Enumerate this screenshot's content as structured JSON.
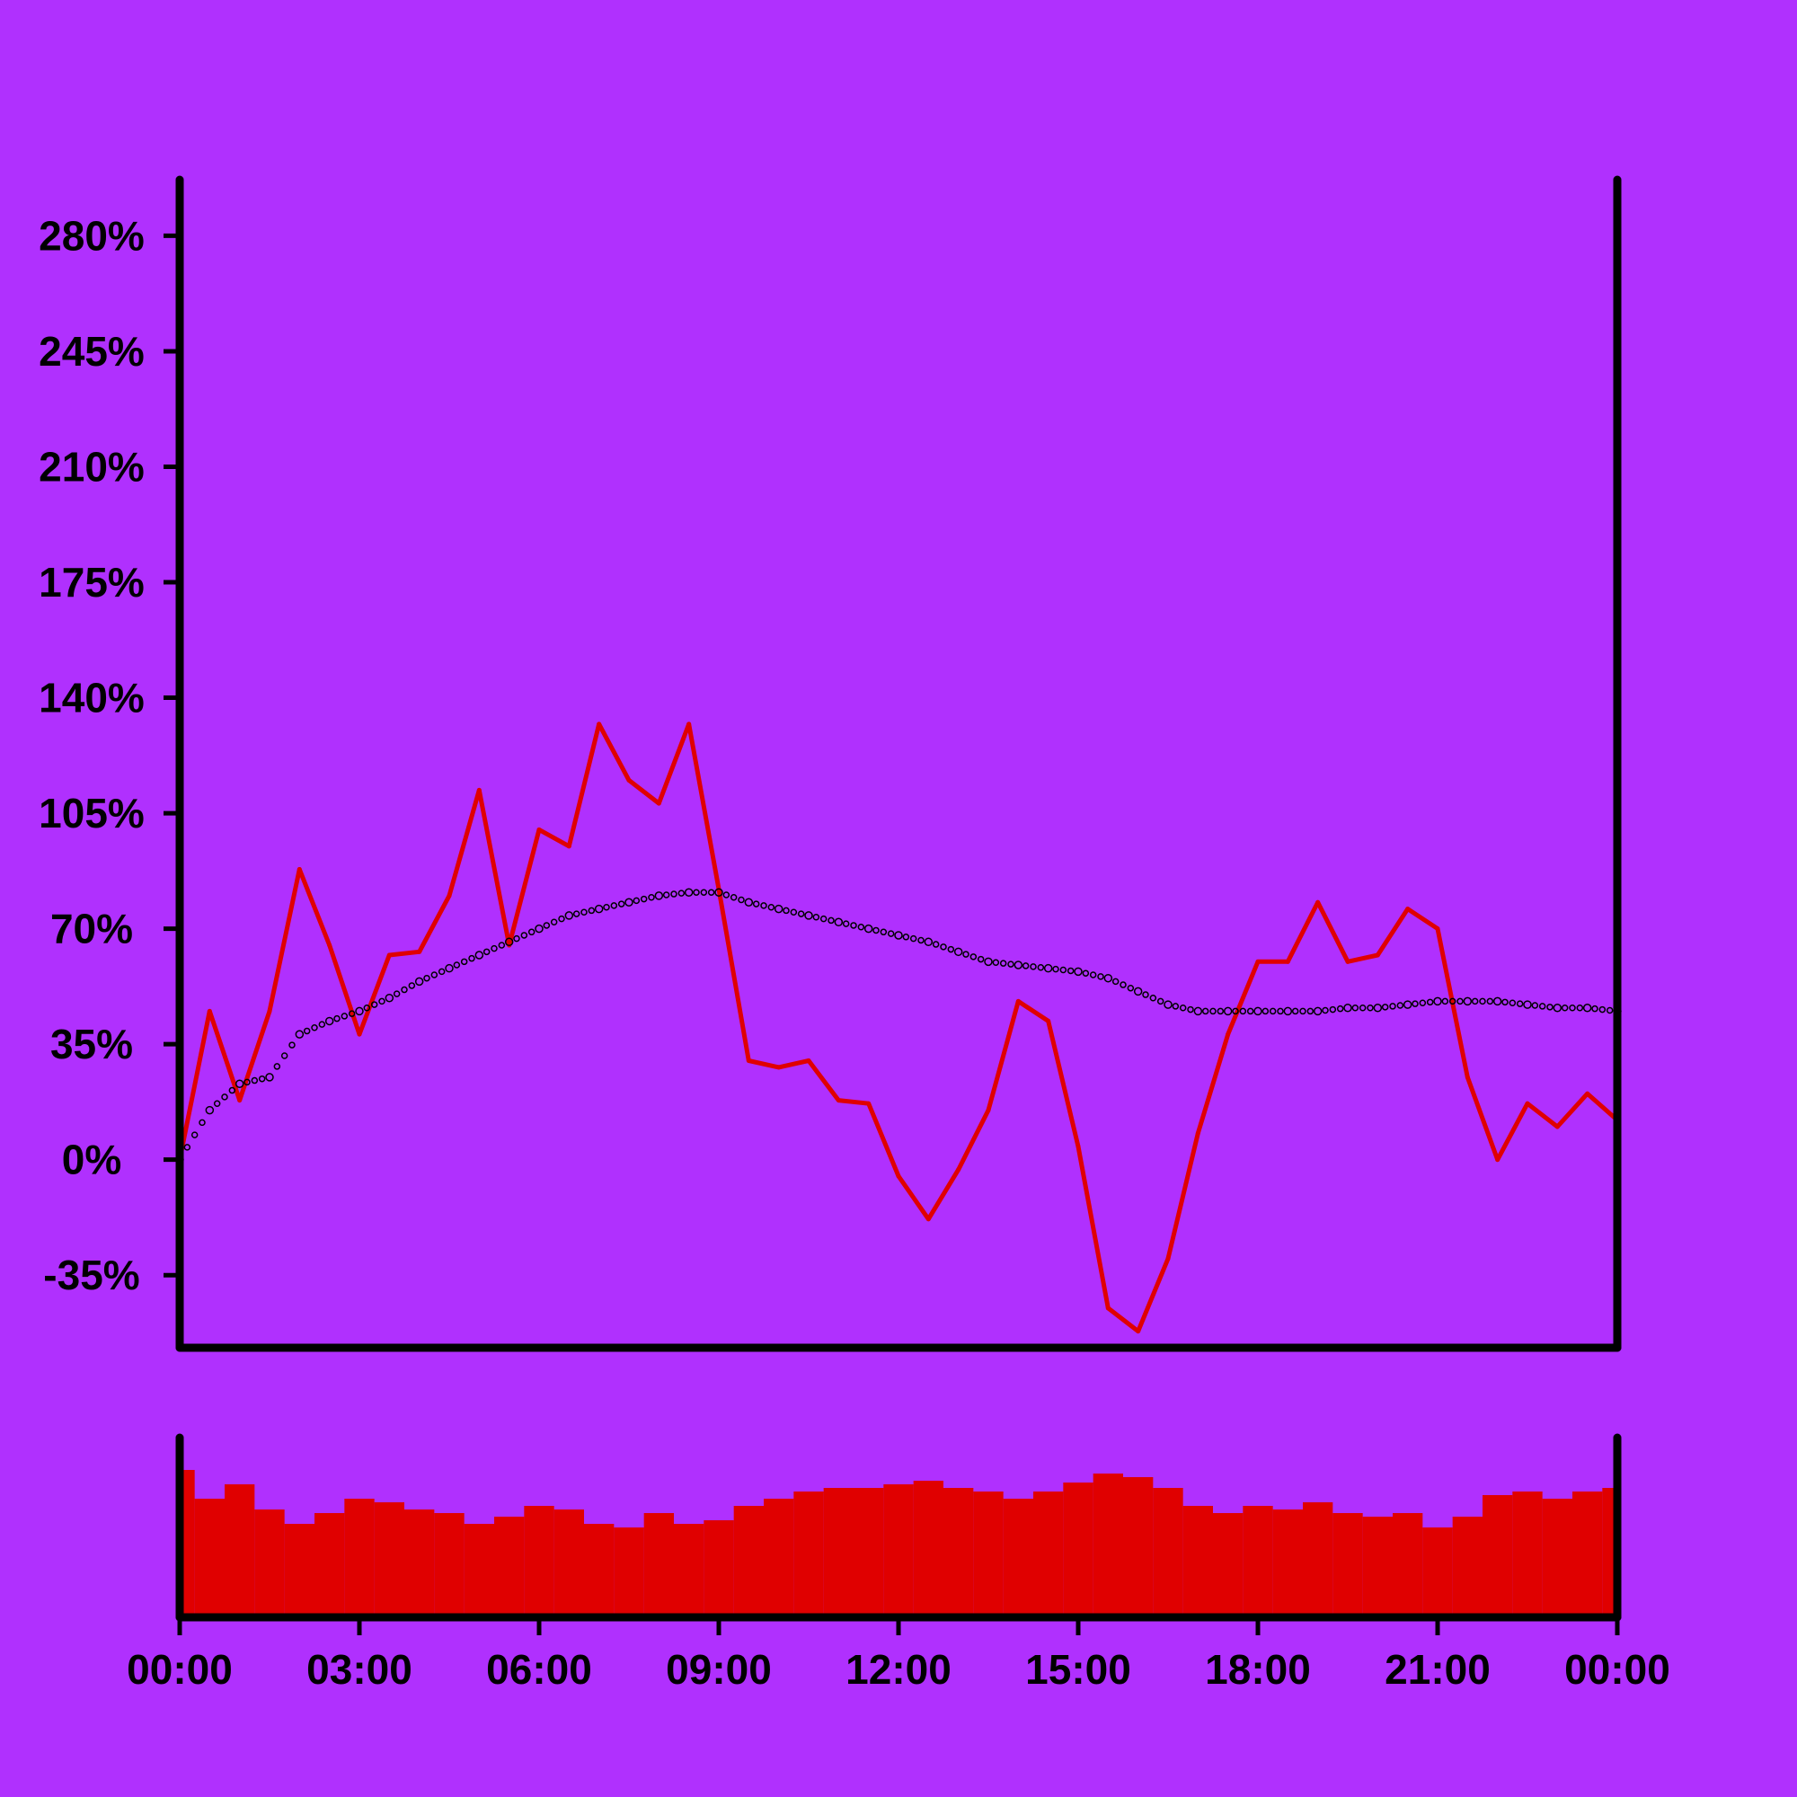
{
  "colors": {
    "background": "#b030fe",
    "price_line": "#e00000",
    "volume_bars": "#e00000",
    "moving_average": "#000000",
    "axis": "#000000"
  },
  "chart_data": [
    {
      "type": "line",
      "title": "",
      "xlabel": "",
      "ylabel": "",
      "ylim": [
        -57,
        297
      ],
      "grid": false,
      "y_ticks": [
        "-35%",
        "0%",
        "35%",
        "70%",
        "105%",
        "140%",
        "175%",
        "210%",
        "245%",
        "280%"
      ],
      "y_tick_values": [
        -35,
        0,
        35,
        70,
        105,
        140,
        175,
        210,
        245,
        280
      ],
      "x": [
        "00:00",
        "00:30",
        "01:00",
        "01:30",
        "02:00",
        "02:30",
        "03:00",
        "03:30",
        "04:00",
        "04:30",
        "05:00",
        "05:30",
        "06:00",
        "06:30",
        "07:00",
        "07:30",
        "08:00",
        "08:30",
        "09:00",
        "09:30",
        "10:00",
        "10:30",
        "11:00",
        "11:30",
        "12:00",
        "12:30",
        "13:00",
        "13:30",
        "14:00",
        "14:30",
        "15:00",
        "15:30",
        "16:00",
        "16:30",
        "17:00",
        "17:30",
        "18:00",
        "18:30",
        "19:00",
        "19:30",
        "20:00",
        "20:30",
        "21:00",
        "21:30",
        "22:00",
        "22:30",
        "23:00",
        "23:30",
        "00:00"
      ],
      "series": [
        {
          "values": [
            0,
            45,
            18,
            45,
            88,
            65,
            38,
            62,
            63,
            80,
            112,
            65,
            100,
            95,
            132,
            115,
            108,
            132,
            82,
            30,
            28,
            30,
            18,
            17,
            -5,
            -18,
            -3,
            15,
            48,
            42,
            4,
            -45,
            -52,
            -30,
            8,
            38,
            60,
            60,
            78,
            60,
            62,
            76,
            70,
            25,
            0,
            17,
            10,
            20,
            12
          ]
        },
        {
          "values": [
            0,
            15,
            23,
            25,
            38,
            42,
            45,
            49,
            54,
            58,
            62,
            66,
            70,
            74,
            76,
            78,
            80,
            81,
            81,
            78,
            76,
            74,
            72,
            70,
            68,
            66,
            63,
            60,
            59,
            58,
            57,
            55,
            51,
            47,
            45,
            45,
            45,
            45,
            45,
            46,
            46,
            47,
            48,
            48,
            48,
            47,
            46,
            46,
            45
          ]
        }
      ]
    },
    {
      "type": "bar",
      "title": "",
      "xlabel": "",
      "ylabel": "",
      "ylim": [
        0,
        1
      ],
      "x_ticks": [
        "00:00",
        "03:00",
        "06:00",
        "09:00",
        "12:00",
        "15:00",
        "18:00",
        "21:00",
        "00:00"
      ],
      "x": [
        "00:00",
        "00:30",
        "01:00",
        "01:30",
        "02:00",
        "02:30",
        "03:00",
        "03:30",
        "04:00",
        "04:30",
        "05:00",
        "05:30",
        "06:00",
        "06:30",
        "07:00",
        "07:30",
        "08:00",
        "08:30",
        "09:00",
        "09:30",
        "10:00",
        "10:30",
        "11:00",
        "11:30",
        "12:00",
        "12:30",
        "13:00",
        "13:30",
        "14:00",
        "14:30",
        "15:00",
        "15:30",
        "16:00",
        "16:30",
        "17:00",
        "17:30",
        "18:00",
        "18:30",
        "19:00",
        "19:30",
        "20:00",
        "20:30",
        "21:00",
        "21:30",
        "22:00",
        "22:30",
        "23:00",
        "23:30",
        "00:00"
      ],
      "values": [
        0.82,
        0.66,
        0.74,
        0.6,
        0.52,
        0.58,
        0.66,
        0.64,
        0.6,
        0.58,
        0.52,
        0.56,
        0.62,
        0.6,
        0.52,
        0.5,
        0.58,
        0.52,
        0.54,
        0.62,
        0.66,
        0.7,
        0.72,
        0.72,
        0.74,
        0.76,
        0.72,
        0.7,
        0.66,
        0.7,
        0.75,
        0.8,
        0.78,
        0.72,
        0.62,
        0.58,
        0.62,
        0.6,
        0.64,
        0.58,
        0.56,
        0.58,
        0.5,
        0.56,
        0.68,
        0.7,
        0.66,
        0.7,
        0.72
      ]
    }
  ]
}
